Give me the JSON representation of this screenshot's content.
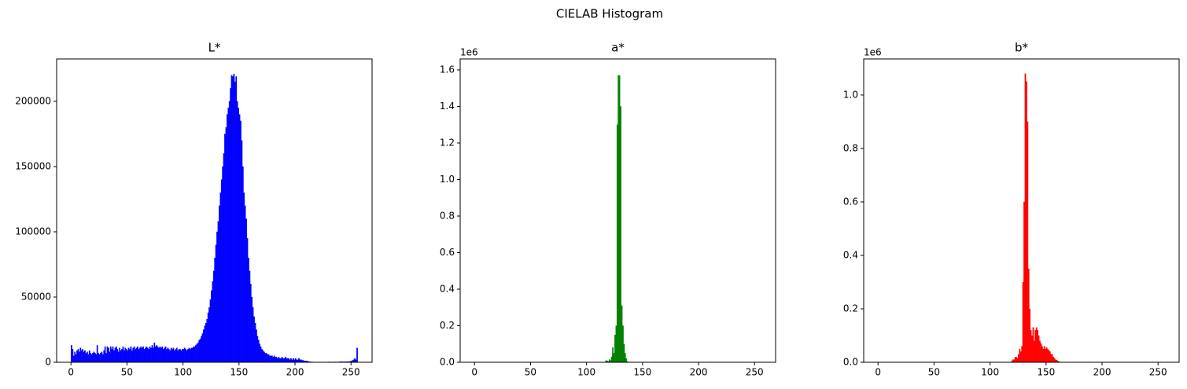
{
  "title": "CIELAB Histogram",
  "chart_data": [
    {
      "type": "histogram",
      "title": "L*",
      "color": "#0000ff",
      "bins": [
        0,
        1,
        2,
        3,
        4,
        5,
        6,
        7,
        8,
        9,
        10,
        11,
        12,
        13,
        14,
        15,
        16,
        17,
        18,
        19,
        20,
        21,
        22,
        23,
        24,
        25,
        26,
        27,
        28,
        29,
        30,
        31,
        32,
        33,
        34,
        35,
        36,
        37,
        38,
        39,
        40,
        41,
        42,
        43,
        44,
        45,
        46,
        47,
        48,
        49,
        50,
        51,
        52,
        53,
        54,
        55,
        56,
        57,
        58,
        59,
        60,
        61,
        62,
        63,
        64,
        65,
        66,
        67,
        68,
        69,
        70,
        71,
        72,
        73,
        74,
        75,
        76,
        77,
        78,
        79,
        80,
        81,
        82,
        83,
        84,
        85,
        86,
        87,
        88,
        89,
        90,
        91,
        92,
        93,
        94,
        95,
        96,
        97,
        98,
        99,
        100,
        101,
        102,
        103,
        104,
        105,
        106,
        107,
        108,
        109,
        110,
        111,
        112,
        113,
        114,
        115,
        116,
        117,
        118,
        119,
        120,
        121,
        122,
        123,
        124,
        125,
        126,
        127,
        128,
        129,
        130,
        131,
        132,
        133,
        134,
        135,
        136,
        137,
        138,
        139,
        140,
        141,
        142,
        143,
        144,
        145,
        146,
        147,
        148,
        149,
        150,
        151,
        152,
        153,
        154,
        155,
        156,
        157,
        158,
        159,
        160,
        161,
        162,
        163,
        164,
        165,
        166,
        167,
        168,
        169,
        170,
        171,
        172,
        173,
        174,
        175,
        176,
        177,
        178,
        179,
        180,
        181,
        182,
        183,
        184,
        185,
        186,
        187,
        188,
        189,
        190,
        191,
        192,
        193,
        194,
        195,
        196,
        197,
        198,
        199,
        200,
        201,
        202,
        203,
        204,
        205,
        206,
        207,
        208,
        209,
        210,
        211,
        212,
        213,
        214,
        215,
        216,
        217,
        218,
        219,
        220,
        221,
        222,
        223,
        224,
        225,
        226,
        227,
        228,
        229,
        230,
        231,
        232,
        233,
        234,
        235,
        236,
        237,
        238,
        239,
        240,
        241,
        242,
        243,
        244,
        245,
        246,
        247,
        248,
        249,
        250,
        251,
        252,
        253,
        254,
        255,
        256
      ],
      "values": [
        13000,
        10000,
        5000,
        8000,
        6000,
        9000,
        10000,
        8000,
        11000,
        9000,
        10000,
        8000,
        9000,
        7000,
        8000,
        6000,
        9000,
        7000,
        6000,
        7000,
        8000,
        7000,
        6000,
        13000,
        7000,
        6000,
        7000,
        8000,
        6000,
        9000,
        12000,
        7000,
        12000,
        11000,
        8000,
        12000,
        10000,
        12000,
        9000,
        11000,
        12000,
        10000,
        8000,
        11000,
        9000,
        10000,
        12000,
        9000,
        11000,
        10000,
        9000,
        11000,
        10000,
        12000,
        9000,
        11000,
        12000,
        10000,
        11000,
        12000,
        10000,
        11000,
        12000,
        11000,
        12000,
        10000,
        11000,
        12000,
        11000,
        10000,
        12000,
        11000,
        13000,
        11000,
        15000,
        12000,
        13000,
        12000,
        11000,
        12000,
        11000,
        12000,
        10000,
        11000,
        12000,
        10000,
        11000,
        10000,
        9000,
        11000,
        10000,
        11000,
        9000,
        10000,
        11000,
        9000,
        10000,
        10000,
        9000,
        10000,
        10000,
        11000,
        10000,
        9000,
        10000,
        11000,
        10000,
        11000,
        11000,
        12000,
        12000,
        13000,
        14000,
        15000,
        17000,
        18000,
        20000,
        22000,
        25000,
        28000,
        30000,
        33000,
        38000,
        42000,
        48000,
        55000,
        62000,
        70000,
        80000,
        90000,
        100000,
        108000,
        120000,
        130000,
        140000,
        150000,
        160000,
        175000,
        180000,
        190000,
        195000,
        200000,
        210000,
        220000,
        219000,
        221000,
        215000,
        219000,
        200000,
        195000,
        190000,
        185000,
        170000,
        150000,
        130000,
        120000,
        110000,
        95000,
        80000,
        70000,
        60000,
        50000,
        42000,
        35000,
        30000,
        25000,
        20000,
        17000,
        14000,
        12000,
        10000,
        9000,
        8000,
        7000,
        7000,
        6000,
        6000,
        5000,
        5000,
        5000,
        4000,
        5000,
        4000,
        4000,
        3000,
        4000,
        3000,
        3000,
        4000,
        3000,
        3000,
        4000,
        3000,
        3000,
        3000,
        2000,
        3000,
        2000,
        3000,
        2000,
        3000,
        2000,
        2000,
        3000,
        2000,
        2000,
        1500,
        1500,
        1000,
        1000,
        1000,
        800,
        500,
        500,
        300,
        300,
        200,
        200,
        200,
        200,
        200,
        200,
        100,
        100,
        100,
        100,
        200,
        100,
        100,
        100,
        300,
        300,
        200,
        300,
        200,
        300,
        300,
        200,
        300,
        300,
        500,
        400,
        500,
        300,
        500,
        400,
        500,
        600,
        500,
        800,
        1000,
        1500,
        2000,
        3000,
        2000,
        11000
      ],
      "xlim": [
        -12.8,
        268.8
      ],
      "ylim": [
        0,
        232500
      ],
      "xticks": [
        0,
        50,
        100,
        150,
        200,
        250
      ],
      "yticks": [
        0,
        50000,
        100000,
        150000,
        200000
      ]
    },
    {
      "type": "histogram",
      "title": "a*",
      "color": "#008000",
      "offset_label": "1e6",
      "bins": [
        117,
        118,
        119,
        120,
        121,
        122,
        123,
        124,
        125,
        126,
        127,
        128,
        129,
        130,
        131,
        132,
        133,
        134,
        135,
        136,
        137
      ],
      "values": [
        0.01,
        0.008,
        0.005,
        0.015,
        0.01,
        0.03,
        0.08,
        0.05,
        0.15,
        0.2,
        1.3,
        1.57,
        1.57,
        1.4,
        0.31,
        0.2,
        0.1,
        0.05,
        0.02,
        0.005
      ],
      "xlim": [
        -12.8,
        268.8
      ],
      "ylim": [
        0,
        1.66
      ],
      "xticks": [
        0,
        50,
        100,
        150,
        200,
        250
      ],
      "yticks": [
        {
          "value": 0,
          "label": "0.0"
        },
        0.2,
        0.4,
        0.6,
        0.8,
        {
          "value": 1,
          "label": "1.0"
        },
        1.2,
        1.4,
        1.6
      ]
    },
    {
      "type": "histogram",
      "title": "b*",
      "color": "#ff0000",
      "offset_label": "1e6",
      "bins": [
        119,
        120,
        121,
        122,
        123,
        124,
        125,
        126,
        127,
        128,
        129,
        130,
        131,
        132,
        133,
        134,
        135,
        136,
        137,
        138,
        139,
        140,
        141,
        142,
        143,
        144,
        145,
        146,
        147,
        148,
        149,
        150,
        151,
        152,
        153,
        154,
        155,
        156,
        157,
        158,
        159,
        160,
        161,
        162
      ],
      "values": [
        0.005,
        0.01,
        0.01,
        0.02,
        0.02,
        0.015,
        0.03,
        0.05,
        0.04,
        0.06,
        0.3,
        0.6,
        1.08,
        1.05,
        0.9,
        0.35,
        0.2,
        0.12,
        0.1,
        0.13,
        0.08,
        0.12,
        0.13,
        0.12,
        0.1,
        0.08,
        0.07,
        0.06,
        0.05,
        0.06,
        0.05,
        0.055,
        0.05,
        0.045,
        0.04,
        0.03,
        0.03,
        0.02,
        0.015,
        0.01,
        0.008,
        0.005,
        0.003
      ],
      "xlim": [
        -12.8,
        268.8
      ],
      "ylim": [
        0,
        1.135
      ],
      "xticks": [
        0,
        50,
        100,
        150,
        200,
        250
      ],
      "yticks": [
        {
          "value": 0,
          "label": "0.0"
        },
        0.2,
        0.4,
        0.6,
        0.8,
        {
          "value": 1,
          "label": "1.0"
        }
      ]
    }
  ]
}
